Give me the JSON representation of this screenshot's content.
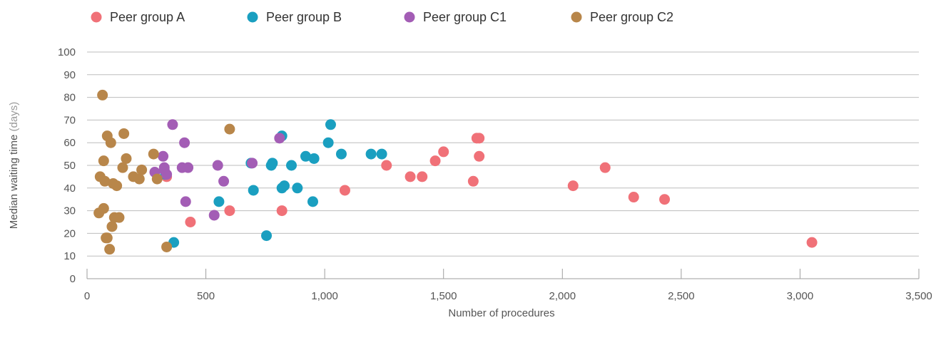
{
  "chart_data": {
    "type": "scatter",
    "xlabel": "Number of procedures",
    "ylabel": "Median waiting time",
    "ylabel_unit": "(days)",
    "xlim": [
      0,
      3500
    ],
    "ylim": [
      0,
      100
    ],
    "x_ticks": [
      0,
      500,
      1000,
      1500,
      2000,
      2500,
      3000,
      3500
    ],
    "x_tick_labels": [
      "0",
      "500",
      "1,000",
      "1,500",
      "2,000",
      "2,500",
      "3,000",
      "3,500"
    ],
    "y_ticks": [
      0,
      10,
      20,
      30,
      40,
      50,
      60,
      70,
      80,
      90,
      100
    ],
    "y_tick_labels": [
      "0",
      "10",
      "20",
      "30",
      "40",
      "50",
      "60",
      "70",
      "80",
      "90",
      "100"
    ],
    "grid": "horizontal",
    "legend_position": "top-left",
    "series": [
      {
        "name": "Peer group A",
        "color": "#f07178",
        "points": [
          [
            335,
            45
          ],
          [
            435,
            25
          ],
          [
            600,
            30
          ],
          [
            820,
            30
          ],
          [
            1085,
            39
          ],
          [
            1260,
            50
          ],
          [
            1360,
            45
          ],
          [
            1410,
            45
          ],
          [
            1465,
            52
          ],
          [
            1500,
            56
          ],
          [
            1625,
            43
          ],
          [
            1640,
            62
          ],
          [
            1650,
            62
          ],
          [
            1650,
            54
          ],
          [
            2045,
            41
          ],
          [
            2180,
            49
          ],
          [
            2300,
            36
          ],
          [
            2430,
            35
          ],
          [
            3050,
            16
          ]
        ]
      },
      {
        "name": "Peer group B",
        "color": "#1a9fc0",
        "points": [
          [
            330,
            46
          ],
          [
            365,
            16
          ],
          [
            555,
            34
          ],
          [
            690,
            51
          ],
          [
            700,
            39
          ],
          [
            755,
            19
          ],
          [
            775,
            50
          ],
          [
            780,
            51
          ],
          [
            820,
            63
          ],
          [
            820,
            40
          ],
          [
            830,
            41
          ],
          [
            860,
            50
          ],
          [
            885,
            40
          ],
          [
            920,
            54
          ],
          [
            950,
            34
          ],
          [
            955,
            53
          ],
          [
            1015,
            60
          ],
          [
            1025,
            68
          ],
          [
            1070,
            55
          ],
          [
            1195,
            55
          ],
          [
            1240,
            55
          ]
        ]
      },
      {
        "name": "Peer group C1",
        "color": "#a35db5",
        "points": [
          [
            285,
            47
          ],
          [
            320,
            54
          ],
          [
            325,
            48
          ],
          [
            325,
            49
          ],
          [
            335,
            46
          ],
          [
            360,
            68
          ],
          [
            400,
            49
          ],
          [
            410,
            60
          ],
          [
            415,
            34
          ],
          [
            425,
            49
          ],
          [
            535,
            28
          ],
          [
            550,
            50
          ],
          [
            575,
            43
          ],
          [
            695,
            51
          ],
          [
            810,
            62
          ]
        ]
      },
      {
        "name": "Peer group C2",
        "color": "#b8864a",
        "points": [
          [
            50,
            29
          ],
          [
            55,
            45
          ],
          [
            65,
            81
          ],
          [
            70,
            31
          ],
          [
            70,
            52
          ],
          [
            75,
            43
          ],
          [
            80,
            18
          ],
          [
            85,
            18
          ],
          [
            85,
            63
          ],
          [
            95,
            13
          ],
          [
            100,
            60
          ],
          [
            105,
            23
          ],
          [
            110,
            42
          ],
          [
            115,
            27
          ],
          [
            125,
            41
          ],
          [
            135,
            27
          ],
          [
            150,
            49
          ],
          [
            155,
            64
          ],
          [
            165,
            53
          ],
          [
            195,
            45
          ],
          [
            220,
            44
          ],
          [
            230,
            48
          ],
          [
            280,
            55
          ],
          [
            295,
            44
          ],
          [
            335,
            14
          ],
          [
            600,
            66
          ]
        ]
      }
    ]
  }
}
